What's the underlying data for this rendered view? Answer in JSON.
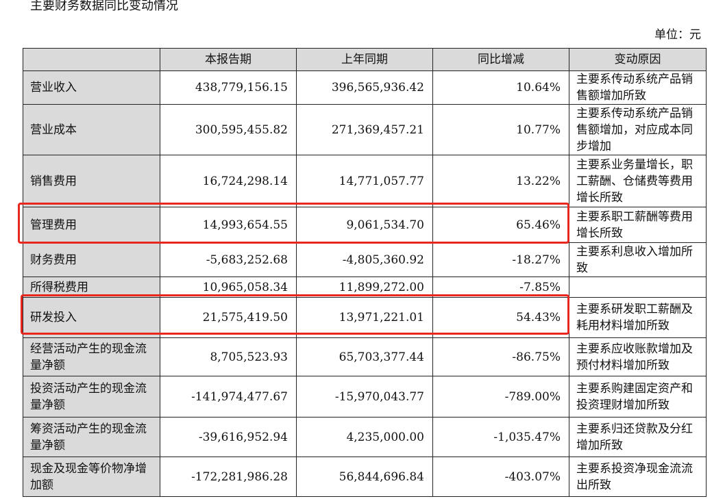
{
  "title": "主要财务数据同比变动情况",
  "unit": "单位：元",
  "columns": [
    "",
    "本报告期",
    "上年同期",
    "同比增减",
    "变动原因"
  ],
  "rows": [
    {
      "item": "营业收入",
      "current": "438,779,156.15",
      "prior": "396,565,936.42",
      "change": "10.64%",
      "reason": "主要系传动系统产品销售额增加所致"
    },
    {
      "item": "营业成本",
      "current": "300,595,455.82",
      "prior": "271,369,457.21",
      "change": "10.77%",
      "reason": "主要系传动系统产品销售额增加，对应成本同步增加"
    },
    {
      "item": "销售费用",
      "current": "16,724,298.14",
      "prior": "14,771,057.77",
      "change": "13.22%",
      "reason": "主要系业务量增长，职工薪酬、仓储费等费用增长所致"
    },
    {
      "item": "管理费用",
      "current": "14,993,654.55",
      "prior": "9,061,534.70",
      "change": "65.46%",
      "reason": "主要系职工薪酬等费用增长所致"
    },
    {
      "item": "财务费用",
      "current": "-5,683,252.68",
      "prior": "-4,805,360.92",
      "change": "-18.27%",
      "reason": "主要系利息收入增加所致"
    },
    {
      "item": "所得税费用",
      "current": "10,965,058.34",
      "prior": "11,899,272.00",
      "change": "-7.85%",
      "reason": ""
    },
    {
      "item": "研发投入",
      "current": "21,575,419.50",
      "prior": "13,971,221.01",
      "change": "54.43%",
      "reason": "主要系研发职工薪酬及耗用材料增加所致"
    },
    {
      "item": "经营活动产生的现金流量净额",
      "current": "8,705,523.93",
      "prior": "65,703,377.44",
      "change": "-86.75%",
      "reason": "主要系应收账款增加及预付材料增加所致"
    },
    {
      "item": "投资活动产生的现金流量净额",
      "current": "-141,974,477.67",
      "prior": "-15,970,043.77",
      "change": "-789.00%",
      "reason": "主要系购建固定资产和投资理财增加所致"
    },
    {
      "item": "筹资活动产生的现金流量净额",
      "current": "-39,616,952.94",
      "prior": "4,235,000.00",
      "change": "-1,035.47%",
      "reason": "主要系归还贷款及分红增加所致"
    },
    {
      "item": "现金及现金等价物净增加额",
      "current": "-172,281,986.28",
      "prior": "56,844,696.84",
      "change": "-403.07%",
      "reason": "主要系投资净现金流流出所致"
    }
  ],
  "highlight_color": "#e8271f",
  "highlighted_rows": [
    "管理费用",
    "研发投入"
  ]
}
